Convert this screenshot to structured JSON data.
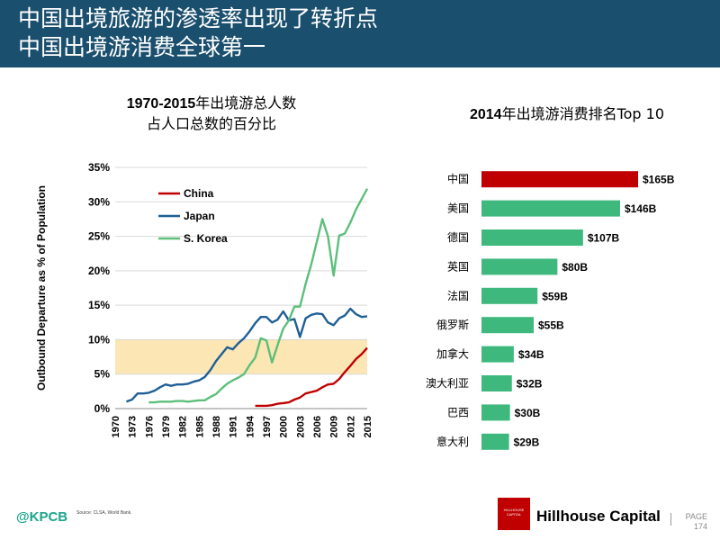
{
  "header": {
    "line1": "中国出境旅游的渗透率出现了转折点",
    "line2": "中国出境游消费全球第一"
  },
  "left_title": {
    "bold": "1970-2015",
    "rest": "年出境游总人数",
    "line2": "占人口总数的百分比"
  },
  "right_title": {
    "bold": "2014",
    "rest": "年出境游消费排名Top 10"
  },
  "colors": {
    "header_bg": "#1b4f6e",
    "china": "#c00000",
    "japan": "#1f5f96",
    "korea": "#5cbf7a",
    "bar_top": "#c00000",
    "bar": "#3fb87d",
    "band": "#fbe6b4"
  },
  "chart_data": [
    {
      "type": "line",
      "ylabel": "Outbound Departure as % of Population",
      "xlabel": "",
      "ylim": [
        0,
        35
      ],
      "yticks": [
        0,
        5,
        10,
        15,
        20,
        25,
        30,
        35
      ],
      "ytick_labels": [
        "0%",
        "5%",
        "10%",
        "15%",
        "20%",
        "25%",
        "30%",
        "35%"
      ],
      "xlim": [
        1970,
        2015
      ],
      "xticks": [
        1970,
        1973,
        1976,
        1979,
        1982,
        1985,
        1988,
        1991,
        1994,
        1997,
        2000,
        2003,
        2006,
        2009,
        2012,
        2015
      ],
      "xtick_labels": [
        "1970",
        "1973",
        "1976",
        "1979",
        "1982",
        "1985",
        "1988",
        "1991",
        "1994",
        "1997",
        "2000",
        "2003",
        "2006",
        "2009",
        "2012",
        "2015"
      ],
      "grid": true,
      "legend": "top-left",
      "shaded_band": [
        5,
        10
      ],
      "series": [
        {
          "name": "China",
          "x": [
            1995,
            1996,
            1997,
            1998,
            1999,
            2000,
            2001,
            2002,
            2003,
            2004,
            2005,
            2006,
            2007,
            2008,
            2009,
            2010,
            2011,
            2012,
            2013,
            2014,
            2015
          ],
          "y": [
            0.4,
            0.4,
            0.4,
            0.5,
            0.7,
            0.8,
            0.9,
            1.3,
            1.6,
            2.2,
            2.4,
            2.6,
            3.1,
            3.5,
            3.6,
            4.3,
            5.3,
            6.2,
            7.2,
            7.9,
            8.8
          ]
        },
        {
          "name": "Japan",
          "x": [
            1972,
            1973,
            1974,
            1975,
            1976,
            1977,
            1978,
            1979,
            1980,
            1981,
            1982,
            1983,
            1984,
            1985,
            1986,
            1987,
            1988,
            1989,
            1990,
            1991,
            1992,
            1993,
            1994,
            1995,
            1996,
            1997,
            1998,
            1999,
            2000,
            2001,
            2002,
            2003,
            2004,
            2005,
            2006,
            2007,
            2008,
            2009,
            2010,
            2011,
            2012,
            2013,
            2014,
            2015
          ],
          "y": [
            1.0,
            1.3,
            2.2,
            2.2,
            2.3,
            2.6,
            3.1,
            3.5,
            3.3,
            3.5,
            3.5,
            3.6,
            3.9,
            4.1,
            4.6,
            5.6,
            6.9,
            7.9,
            8.9,
            8.6,
            9.5,
            10.2,
            11.2,
            12.4,
            13.3,
            13.3,
            12.5,
            12.9,
            14.1,
            12.8,
            13.0,
            10.4,
            13.1,
            13.6,
            13.8,
            13.7,
            12.5,
            12.1,
            13.1,
            13.5,
            14.5,
            13.7,
            13.3,
            13.4
          ]
        },
        {
          "name": "S. Korea",
          "x": [
            1976,
            1977,
            1978,
            1979,
            1980,
            1981,
            1982,
            1983,
            1984,
            1985,
            1986,
            1987,
            1988,
            1989,
            1990,
            1991,
            1992,
            1993,
            1994,
            1995,
            1996,
            1997,
            1998,
            1999,
            2000,
            2001,
            2002,
            2003,
            2004,
            2005,
            2006,
            2007,
            2008,
            2009,
            2010,
            2011,
            2012,
            2013,
            2014,
            2015
          ],
          "y": [
            0.9,
            0.9,
            1.0,
            1.0,
            1.0,
            1.1,
            1.1,
            1.0,
            1.1,
            1.2,
            1.2,
            1.7,
            2.1,
            2.9,
            3.6,
            4.1,
            4.5,
            5.0,
            6.3,
            7.4,
            10.2,
            9.9,
            6.7,
            9.2,
            11.6,
            12.8,
            14.8,
            14.8,
            18.1,
            20.9,
            24.2,
            27.5,
            25.0,
            19.3,
            25.1,
            25.4,
            27.0,
            28.9,
            30.4,
            31.9
          ]
        }
      ]
    },
    {
      "type": "bar",
      "orientation": "horizontal",
      "title": "2014年出境游消费排名Top 10",
      "categories": [
        "中国",
        "美国",
        "德国",
        "英国",
        "法国",
        "俄罗斯",
        "加拿大",
        "澳大利亚",
        "巴西",
        "意大利"
      ],
      "values": [
        165,
        146,
        107,
        80,
        59,
        55,
        34,
        32,
        30,
        29
      ],
      "value_labels": [
        "$165B",
        "$146B",
        "$107B",
        "$80B",
        "$59B",
        "$55B",
        "$34B",
        "$32B",
        "$30B",
        "$29B"
      ],
      "xlim": [
        0,
        165
      ]
    }
  ],
  "footer": {
    "logo": "@KPCB",
    "source": "Source: CLSA, World Bank.",
    "hh_box_line1": "HILLHOUSE",
    "hh_box_line2": "CAPITAL",
    "hh_name": "Hillhouse Capital",
    "page_label": "PAGE",
    "page_number": "174"
  }
}
